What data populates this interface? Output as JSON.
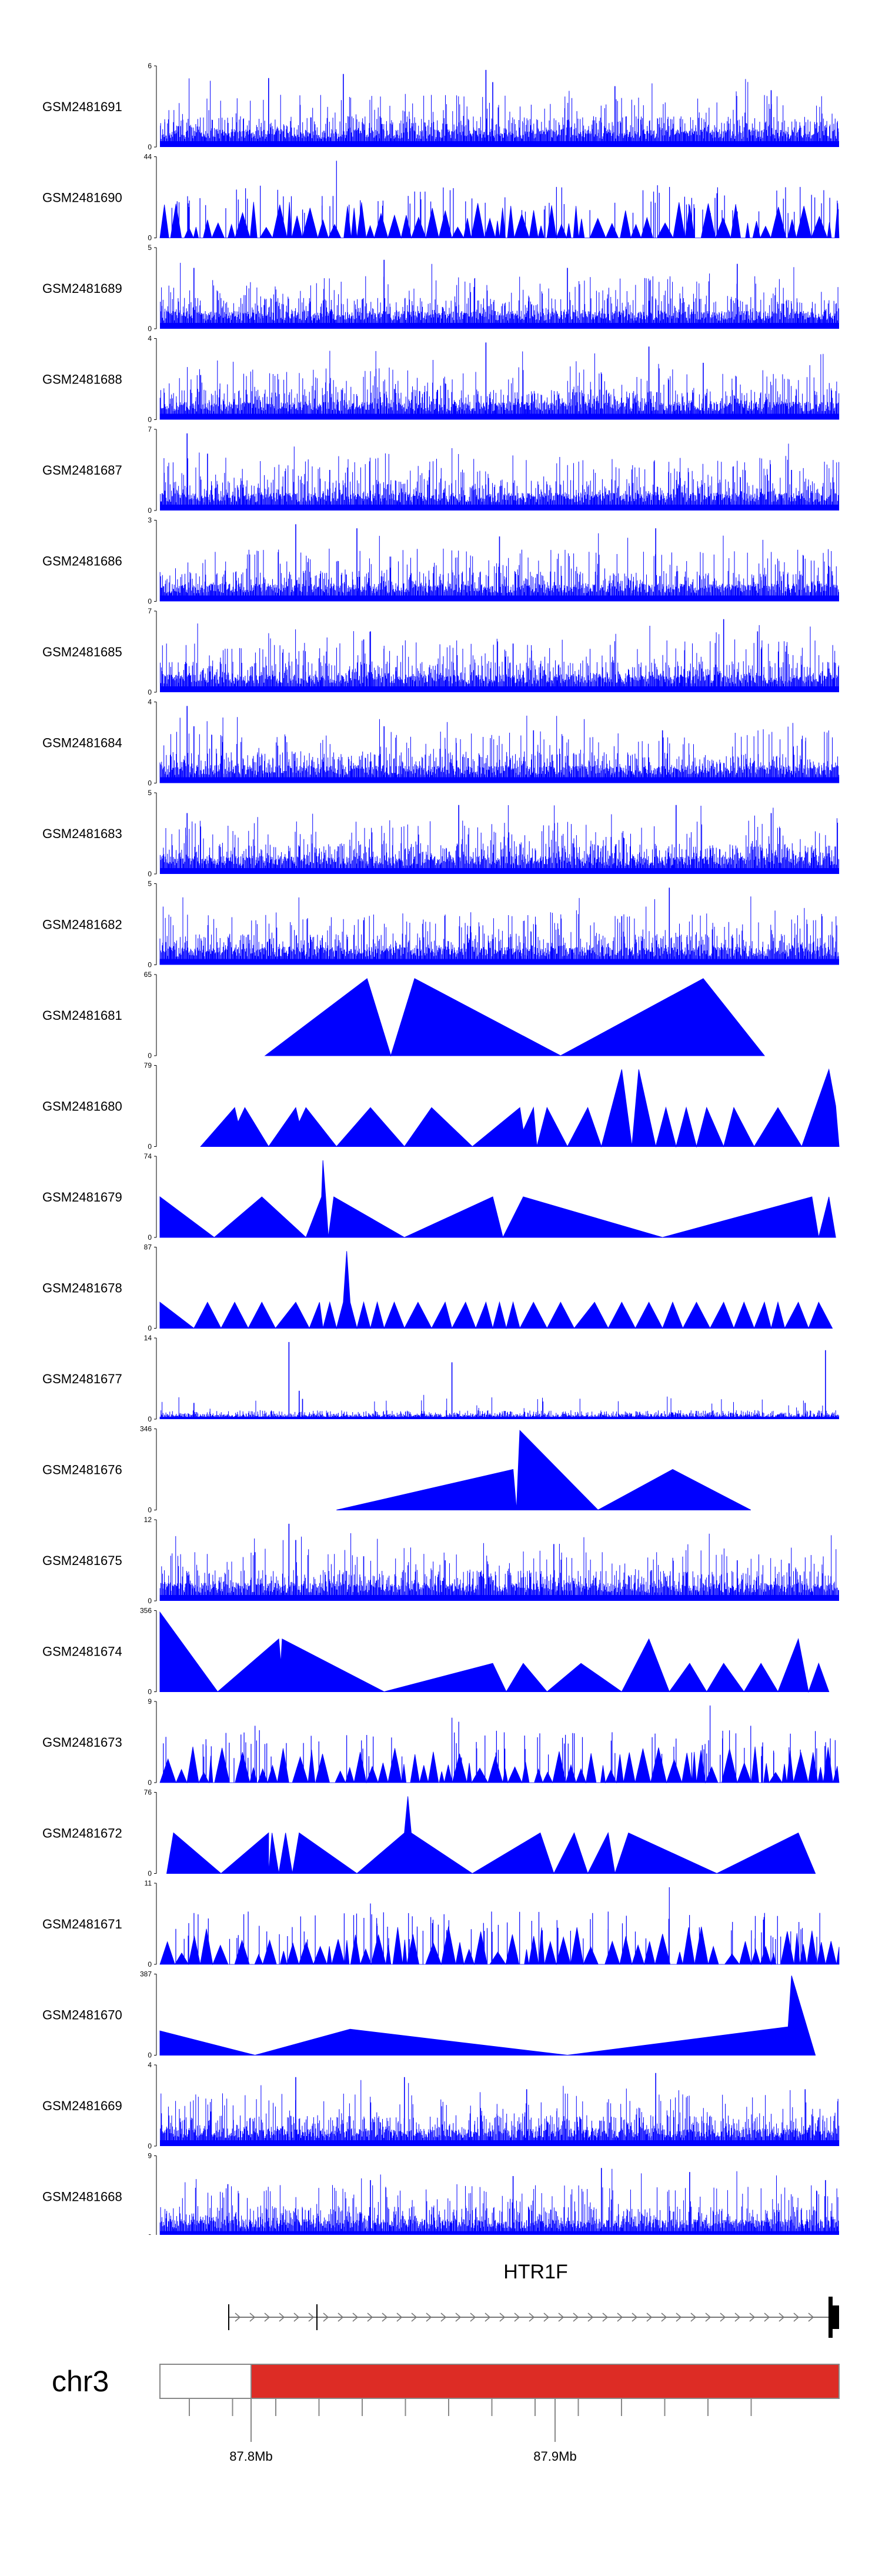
{
  "chart_data": {
    "type": "area",
    "title": "",
    "color": "#0000ff",
    "tracks": [
      {
        "name": "GSM2481691",
        "max": 6,
        "style": "spiky",
        "seed": 11,
        "density": 1.0,
        "peaks": [
          [
            0.16,
            0.85
          ],
          [
            0.27,
            0.9
          ],
          [
            0.48,
            0.95
          ],
          [
            0.49,
            0.8
          ],
          [
            0.67,
            0.75
          ],
          [
            0.9,
            0.7
          ]
        ]
      },
      {
        "name": "GSM2481690",
        "max": 44,
        "style": "tent",
        "seed": 12,
        "density": 0.7,
        "peaks": [
          [
            0.26,
            0.95
          ],
          [
            0.45,
            0.45
          ],
          [
            0.82,
            0.55
          ]
        ]
      },
      {
        "name": "GSM2481689",
        "max": 5,
        "style": "spiky",
        "seed": 13,
        "density": 1.0,
        "peaks": [
          [
            0.05,
            0.75
          ],
          [
            0.33,
            0.85
          ],
          [
            0.6,
            0.75
          ],
          [
            0.85,
            0.8
          ]
        ]
      },
      {
        "name": "GSM2481688",
        "max": 4,
        "style": "spiky",
        "seed": 14,
        "density": 1.0,
        "peaks": [
          [
            0.48,
            0.95
          ],
          [
            0.72,
            0.9
          ],
          [
            0.8,
            0.7
          ],
          [
            0.06,
            0.55
          ]
        ]
      },
      {
        "name": "GSM2481687",
        "max": 7,
        "style": "spiky",
        "seed": 15,
        "density": 1.0,
        "peaks": [
          [
            0.04,
            0.95
          ],
          [
            0.07,
            0.7
          ],
          [
            0.93,
            0.5
          ],
          [
            0.25,
            0.5
          ]
        ]
      },
      {
        "name": "GSM2481686",
        "max": 3,
        "style": "spiky",
        "seed": 16,
        "density": 1.0,
        "peaks": [
          [
            0.2,
            0.95
          ],
          [
            0.29,
            0.9
          ],
          [
            0.73,
            0.9
          ],
          [
            0.5,
            0.8
          ]
        ]
      },
      {
        "name": "GSM2481685",
        "max": 7,
        "style": "spiky",
        "seed": 17,
        "density": 1.0,
        "peaks": [
          [
            0.31,
            0.75
          ],
          [
            0.3,
            0.65
          ],
          [
            0.83,
            0.9
          ],
          [
            0.88,
            0.75
          ],
          [
            0.52,
            0.6
          ]
        ]
      },
      {
        "name": "GSM2481684",
        "max": 4,
        "style": "spiky",
        "seed": 18,
        "density": 1.0,
        "peaks": [
          [
            0.04,
            0.95
          ],
          [
            0.05,
            0.7
          ],
          [
            0.33,
            0.7
          ],
          [
            0.55,
            0.65
          ],
          [
            0.74,
            0.65
          ]
        ]
      },
      {
        "name": "GSM2481683",
        "max": 5,
        "style": "spiky",
        "seed": 19,
        "density": 1.0,
        "peaks": [
          [
            0.04,
            0.75
          ],
          [
            0.44,
            0.85
          ],
          [
            0.76,
            0.85
          ],
          [
            0.9,
            0.75
          ]
        ]
      },
      {
        "name": "GSM2481682",
        "max": 5,
        "style": "spiky",
        "seed": 20,
        "density": 1.0,
        "peaks": [
          [
            0.75,
            0.95
          ],
          [
            0.68,
            0.6
          ],
          [
            0.3,
            0.55
          ]
        ]
      },
      {
        "name": "GSM2481681",
        "max": 65,
        "style": "vertex",
        "pts": [
          [
            0.155,
            0
          ],
          [
            0.305,
            0.95
          ],
          [
            0.34,
            0
          ],
          [
            0.375,
            0.95
          ],
          [
            0.59,
            0
          ],
          [
            0.8,
            0.95
          ],
          [
            0.89,
            0
          ]
        ]
      },
      {
        "name": "GSM2481680",
        "max": 79,
        "style": "vertex",
        "pts": [
          [
            0.06,
            0
          ],
          [
            0.11,
            0.48
          ],
          [
            0.115,
            0.3
          ],
          [
            0.125,
            0.48
          ],
          [
            0.16,
            0
          ],
          [
            0.2,
            0.48
          ],
          [
            0.205,
            0.3
          ],
          [
            0.215,
            0.48
          ],
          [
            0.26,
            0
          ],
          [
            0.31,
            0.48
          ],
          [
            0.36,
            0
          ],
          [
            0.4,
            0.48
          ],
          [
            0.46,
            0
          ],
          [
            0.53,
            0.48
          ],
          [
            0.535,
            0.2
          ],
          [
            0.55,
            0.48
          ],
          [
            0.555,
            0
          ],
          [
            0.57,
            0.48
          ],
          [
            0.6,
            0
          ],
          [
            0.63,
            0.48
          ],
          [
            0.65,
            0
          ],
          [
            0.68,
            0.95
          ],
          [
            0.695,
            0
          ],
          [
            0.705,
            0.95
          ],
          [
            0.73,
            0
          ],
          [
            0.745,
            0.48
          ],
          [
            0.76,
            0
          ],
          [
            0.775,
            0.48
          ],
          [
            0.79,
            0
          ],
          [
            0.805,
            0.48
          ],
          [
            0.83,
            0
          ],
          [
            0.845,
            0.48
          ],
          [
            0.875,
            0
          ],
          [
            0.91,
            0.48
          ],
          [
            0.945,
            0
          ],
          [
            0.985,
            0.95
          ],
          [
            0.995,
            0.5
          ],
          [
            1.0,
            0
          ]
        ]
      },
      {
        "name": "GSM2481679",
        "max": 74,
        "style": "vertex",
        "pts": [
          [
            0.0,
            0
          ],
          [
            0.0,
            0.5
          ],
          [
            0.08,
            0
          ],
          [
            0.15,
            0.5
          ],
          [
            0.215,
            0
          ],
          [
            0.238,
            0.5
          ],
          [
            0.24,
            0.95
          ],
          [
            0.244,
            0.5
          ],
          [
            0.248,
            0
          ],
          [
            0.256,
            0.5
          ],
          [
            0.36,
            0
          ],
          [
            0.49,
            0.5
          ],
          [
            0.505,
            0
          ],
          [
            0.535,
            0.5
          ],
          [
            0.74,
            0
          ],
          [
            0.96,
            0.5
          ],
          [
            0.97,
            0
          ],
          [
            0.985,
            0.5
          ],
          [
            0.995,
            0
          ]
        ]
      },
      {
        "name": "GSM2481678",
        "max": 87,
        "style": "vertex",
        "pts": [
          [
            0.0,
            0
          ],
          [
            0.0,
            0.32
          ],
          [
            0.05,
            0
          ],
          [
            0.07,
            0.32
          ],
          [
            0.09,
            0
          ],
          [
            0.11,
            0.32
          ],
          [
            0.13,
            0
          ],
          [
            0.15,
            0.32
          ],
          [
            0.17,
            0
          ],
          [
            0.2,
            0.32
          ],
          [
            0.22,
            0
          ],
          [
            0.235,
            0.32
          ],
          [
            0.24,
            0
          ],
          [
            0.25,
            0.32
          ],
          [
            0.26,
            0
          ],
          [
            0.27,
            0.32
          ],
          [
            0.275,
            0.95
          ],
          [
            0.28,
            0.32
          ],
          [
            0.29,
            0
          ],
          [
            0.3,
            0.32
          ],
          [
            0.31,
            0
          ],
          [
            0.32,
            0.32
          ],
          [
            0.33,
            0
          ],
          [
            0.345,
            0.32
          ],
          [
            0.36,
            0
          ],
          [
            0.38,
            0.32
          ],
          [
            0.4,
            0
          ],
          [
            0.42,
            0.32
          ],
          [
            0.43,
            0
          ],
          [
            0.45,
            0.32
          ],
          [
            0.465,
            0
          ],
          [
            0.48,
            0.32
          ],
          [
            0.49,
            0
          ],
          [
            0.5,
            0.32
          ],
          [
            0.51,
            0
          ],
          [
            0.52,
            0.32
          ],
          [
            0.53,
            0
          ],
          [
            0.55,
            0.32
          ],
          [
            0.57,
            0
          ],
          [
            0.59,
            0.32
          ],
          [
            0.61,
            0
          ],
          [
            0.64,
            0.32
          ],
          [
            0.66,
            0
          ],
          [
            0.68,
            0.32
          ],
          [
            0.7,
            0
          ],
          [
            0.72,
            0.32
          ],
          [
            0.74,
            0
          ],
          [
            0.755,
            0.32
          ],
          [
            0.77,
            0
          ],
          [
            0.79,
            0.32
          ],
          [
            0.81,
            0
          ],
          [
            0.83,
            0.32
          ],
          [
            0.845,
            0
          ],
          [
            0.86,
            0.32
          ],
          [
            0.875,
            0
          ],
          [
            0.89,
            0.32
          ],
          [
            0.9,
            0
          ],
          [
            0.91,
            0.32
          ],
          [
            0.92,
            0
          ],
          [
            0.94,
            0.32
          ],
          [
            0.955,
            0
          ],
          [
            0.97,
            0.32
          ],
          [
            0.99,
            0
          ]
        ]
      },
      {
        "name": "GSM2481677",
        "max": 14,
        "style": "lowspiky",
        "seed": 27,
        "density": 0.6,
        "peaks": [
          [
            0.19,
            0.95
          ],
          [
            0.205,
            0.35
          ],
          [
            0.21,
            0.25
          ],
          [
            0.43,
            0.7
          ],
          [
            0.98,
            0.85
          ],
          [
            0.95,
            0.2
          ],
          [
            0.05,
            0.2
          ]
        ]
      },
      {
        "name": "GSM2481676",
        "max": 346,
        "style": "vertex",
        "pts": [
          [
            0.26,
            0
          ],
          [
            0.52,
            0.5
          ],
          [
            0.525,
            0
          ],
          [
            0.53,
            0.98
          ],
          [
            0.645,
            0
          ],
          [
            0.755,
            0.5
          ],
          [
            0.87,
            0
          ]
        ]
      },
      {
        "name": "GSM2481675",
        "max": 12,
        "style": "spiky",
        "seed": 29,
        "density": 0.9,
        "peaks": [
          [
            0.19,
            0.95
          ],
          [
            0.2,
            0.75
          ],
          [
            0.14,
            0.6
          ],
          [
            0.3,
            0.55
          ],
          [
            0.42,
            0.5
          ],
          [
            0.58,
            0.7
          ],
          [
            0.85,
            0.5
          ]
        ]
      },
      {
        "name": "GSM2481674",
        "max": 356,
        "style": "vertex",
        "pts": [
          [
            0.0,
            0
          ],
          [
            0.0,
            0.98
          ],
          [
            0.085,
            0
          ],
          [
            0.175,
            0.65
          ],
          [
            0.178,
            0.35
          ],
          [
            0.18,
            0.65
          ],
          [
            0.33,
            0
          ],
          [
            0.49,
            0.35
          ],
          [
            0.51,
            0
          ],
          [
            0.535,
            0.35
          ],
          [
            0.57,
            0
          ],
          [
            0.62,
            0.35
          ],
          [
            0.68,
            0
          ],
          [
            0.72,
            0.65
          ],
          [
            0.75,
            0
          ],
          [
            0.78,
            0.35
          ],
          [
            0.805,
            0
          ],
          [
            0.83,
            0.35
          ],
          [
            0.86,
            0
          ],
          [
            0.885,
            0.35
          ],
          [
            0.91,
            0
          ],
          [
            0.94,
            0.65
          ],
          [
            0.955,
            0
          ],
          [
            0.97,
            0.35
          ],
          [
            0.985,
            0
          ]
        ]
      },
      {
        "name": "GSM2481673",
        "max": 9,
        "style": "tent",
        "seed": 31,
        "density": 1.0,
        "peaks": [
          [
            0.43,
            0.8
          ],
          [
            0.44,
            0.75
          ],
          [
            0.81,
            0.95
          ],
          [
            0.14,
            0.7
          ],
          [
            0.87,
            0.7
          ]
        ]
      },
      {
        "name": "GSM2481672",
        "max": 76,
        "style": "vertex",
        "pts": [
          [
            0.01,
            0
          ],
          [
            0.02,
            0.5
          ],
          [
            0.09,
            0
          ],
          [
            0.16,
            0.5
          ],
          [
            0.16,
            0
          ],
          [
            0.165,
            0.5
          ],
          [
            0.175,
            0
          ],
          [
            0.185,
            0.5
          ],
          [
            0.195,
            0
          ],
          [
            0.205,
            0.5
          ],
          [
            0.29,
            0
          ],
          [
            0.36,
            0.5
          ],
          [
            0.365,
            0.95
          ],
          [
            0.37,
            0.5
          ],
          [
            0.46,
            0
          ],
          [
            0.56,
            0.5
          ],
          [
            0.58,
            0
          ],
          [
            0.61,
            0.5
          ],
          [
            0.63,
            0
          ],
          [
            0.66,
            0.5
          ],
          [
            0.67,
            0
          ],
          [
            0.69,
            0.5
          ],
          [
            0.82,
            0
          ],
          [
            0.94,
            0.5
          ],
          [
            0.965,
            0
          ]
        ]
      },
      {
        "name": "GSM2481671",
        "max": 11,
        "style": "tent",
        "seed": 33,
        "density": 1.0,
        "peaks": [
          [
            0.31,
            0.75
          ],
          [
            0.75,
            0.95
          ],
          [
            0.66,
            0.65
          ],
          [
            0.13,
            0.65
          ]
        ]
      },
      {
        "name": "GSM2481670",
        "max": 387,
        "style": "vertex",
        "pts": [
          [
            0.0,
            0
          ],
          [
            0.0,
            0.3
          ],
          [
            0.14,
            0
          ],
          [
            0.28,
            0.32
          ],
          [
            0.6,
            0
          ],
          [
            0.925,
            0.35
          ],
          [
            0.93,
            0.98
          ],
          [
            0.965,
            0
          ]
        ]
      },
      {
        "name": "GSM2481669",
        "max": 4,
        "style": "spiky",
        "seed": 35,
        "density": 1.0,
        "peaks": [
          [
            0.2,
            0.85
          ],
          [
            0.36,
            0.85
          ],
          [
            0.54,
            0.7
          ],
          [
            0.73,
            0.9
          ],
          [
            0.95,
            0.7
          ]
        ]
      },
      {
        "name": "GSM2481668",
        "max": 9,
        "style": "spiky",
        "seed": 36,
        "density": 1.0,
        "peaks": [
          [
            0.1,
            0.65
          ],
          [
            0.31,
            0.7
          ],
          [
            0.52,
            0.75
          ],
          [
            0.65,
            0.85
          ],
          [
            0.78,
            0.8
          ],
          [
            0.98,
            0.7
          ]
        ]
      }
    ],
    "gene": {
      "name": "HTR1F",
      "strand": "-"
    },
    "chromosome": {
      "name": "chr3",
      "color": "#dd2c25",
      "ticks": [
        "87.8Mb",
        "87.9Mb"
      ]
    }
  }
}
